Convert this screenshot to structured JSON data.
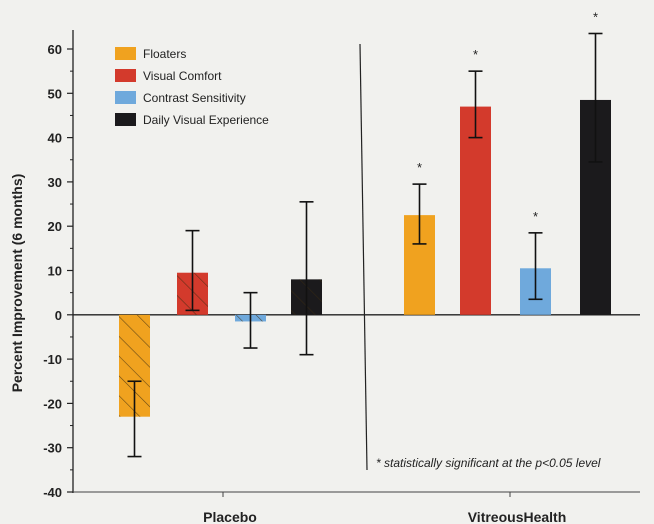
{
  "chart_data": {
    "type": "bar",
    "ylabel": "Percent Improvement (6 months)",
    "ylim": [
      -40,
      65
    ],
    "yticks": [
      60,
      50,
      40,
      30,
      20,
      10,
      0,
      -10,
      -20,
      -30,
      -40
    ],
    "ytick_labels": [
      "60",
      "50",
      "40",
      "30",
      "20",
      "10",
      "0",
      "-10",
      "-20",
      "-30",
      "-40"
    ],
    "categories": [
      "Placebo",
      "VitreousHealth"
    ],
    "series": [
      {
        "name": "Floaters",
        "color": "#f0a21f",
        "values": [
          -23,
          22.5
        ],
        "error": [
          [
            -32,
            -15
          ],
          [
            16,
            29.5
          ]
        ]
      },
      {
        "name": "Visual Comfort",
        "color": "#d33a2c",
        "values": [
          9.5,
          47
        ],
        "error": [
          [
            1,
            19
          ],
          [
            40,
            55
          ]
        ]
      },
      {
        "name": "Contrast Sensitivity",
        "color": "#6fa9dc",
        "values": [
          -1.5,
          10.5
        ],
        "error": [
          [
            -7.5,
            5
          ],
          [
            3.5,
            18.5
          ]
        ]
      },
      {
        "name": "Daily Visual Experience",
        "color": "#1b1a1c",
        "values": [
          8,
          48.5
        ],
        "error": [
          [
            -9,
            25.5
          ],
          [
            34.5,
            63.5
          ]
        ]
      }
    ],
    "hatched_group": 0,
    "significance_marker": "*",
    "significant_group": 1,
    "footnote": "* statistically significant at the p<0.05 level",
    "grid": false,
    "legend_position": "top-left"
  }
}
